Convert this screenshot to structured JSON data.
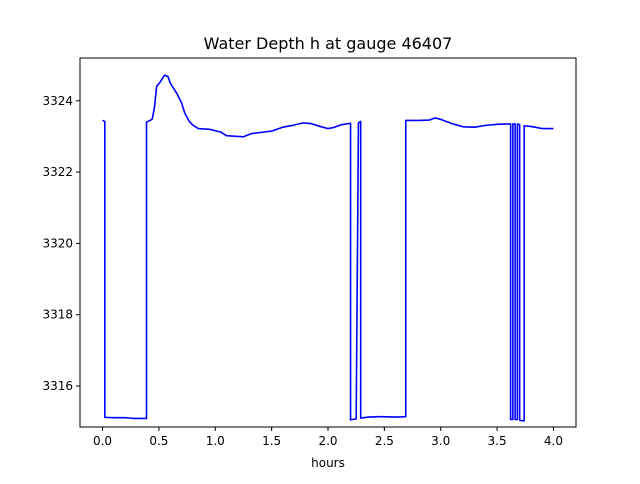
{
  "chart_data": {
    "type": "line",
    "title": "Water Depth h at gauge 46407",
    "xlabel": "hours",
    "ylabel": "",
    "xlim": [
      -0.2,
      4.2
    ],
    "ylim": [
      3314.85,
      3325.2
    ],
    "xticks": [
      0.0,
      0.5,
      1.0,
      1.5,
      2.0,
      2.5,
      3.0,
      3.5,
      4.0
    ],
    "xtick_labels": [
      "0.0",
      "0.5",
      "1.0",
      "1.5",
      "2.0",
      "2.5",
      "3.0",
      "3.5",
      "4.0"
    ],
    "yticks": [
      3316,
      3318,
      3320,
      3322,
      3324
    ],
    "ytick_labels": [
      "3316",
      "3318",
      "3320",
      "3322",
      "3324"
    ],
    "grid": false,
    "series": [
      {
        "color": "#0000ff",
        "points": [
          [
            0.0,
            3323.45
          ],
          [
            0.02,
            3323.42
          ],
          [
            0.02,
            3315.12
          ],
          [
            0.1,
            3315.11
          ],
          [
            0.2,
            3315.11
          ],
          [
            0.28,
            3315.09
          ],
          [
            0.39,
            3315.09
          ],
          [
            0.39,
            3323.4
          ],
          [
            0.44,
            3323.48
          ],
          [
            0.46,
            3323.8
          ],
          [
            0.48,
            3324.4
          ],
          [
            0.51,
            3324.52
          ],
          [
            0.55,
            3324.72
          ],
          [
            0.58,
            3324.68
          ],
          [
            0.6,
            3324.5
          ],
          [
            0.63,
            3324.35
          ],
          [
            0.66,
            3324.2
          ],
          [
            0.7,
            3323.95
          ],
          [
            0.73,
            3323.65
          ],
          [
            0.77,
            3323.42
          ],
          [
            0.8,
            3323.32
          ],
          [
            0.85,
            3323.22
          ],
          [
            0.95,
            3323.2
          ],
          [
            1.05,
            3323.12
          ],
          [
            1.1,
            3323.02
          ],
          [
            1.2,
            3323.0
          ],
          [
            1.25,
            3322.99
          ],
          [
            1.32,
            3323.08
          ],
          [
            1.4,
            3323.11
          ],
          [
            1.5,
            3323.15
          ],
          [
            1.6,
            3323.26
          ],
          [
            1.7,
            3323.32
          ],
          [
            1.78,
            3323.38
          ],
          [
            1.85,
            3323.36
          ],
          [
            1.93,
            3323.28
          ],
          [
            2.0,
            3323.22
          ],
          [
            2.05,
            3323.25
          ],
          [
            2.12,
            3323.33
          ],
          [
            2.2,
            3323.37
          ],
          [
            2.2,
            3315.05
          ],
          [
            2.25,
            3315.08
          ],
          [
            2.27,
            3323.38
          ],
          [
            2.29,
            3323.42
          ],
          [
            2.29,
            3315.1
          ],
          [
            2.36,
            3315.13
          ],
          [
            2.45,
            3315.14
          ],
          [
            2.6,
            3315.13
          ],
          [
            2.69,
            3315.14
          ],
          [
            2.69,
            3323.45
          ],
          [
            2.8,
            3323.45
          ],
          [
            2.9,
            3323.46
          ],
          [
            2.95,
            3323.52
          ],
          [
            3.0,
            3323.48
          ],
          [
            3.1,
            3323.36
          ],
          [
            3.2,
            3323.27
          ],
          [
            3.3,
            3323.26
          ],
          [
            3.4,
            3323.31
          ],
          [
            3.5,
            3323.34
          ],
          [
            3.6,
            3323.35
          ],
          [
            3.62,
            3323.35
          ],
          [
            3.62,
            3315.06
          ],
          [
            3.64,
            3315.06
          ],
          [
            3.64,
            3323.35
          ],
          [
            3.66,
            3323.35
          ],
          [
            3.66,
            3315.06
          ],
          [
            3.68,
            3315.06
          ],
          [
            3.68,
            3323.35
          ],
          [
            3.7,
            3323.33
          ],
          [
            3.7,
            3315.04
          ],
          [
            3.74,
            3315.02
          ],
          [
            3.74,
            3323.3
          ],
          [
            3.8,
            3323.28
          ],
          [
            3.9,
            3323.22
          ],
          [
            4.0,
            3323.22
          ]
        ]
      }
    ]
  },
  "colors": {
    "line": "#0000ff",
    "axes": "#000000",
    "background": "#ffffff"
  }
}
